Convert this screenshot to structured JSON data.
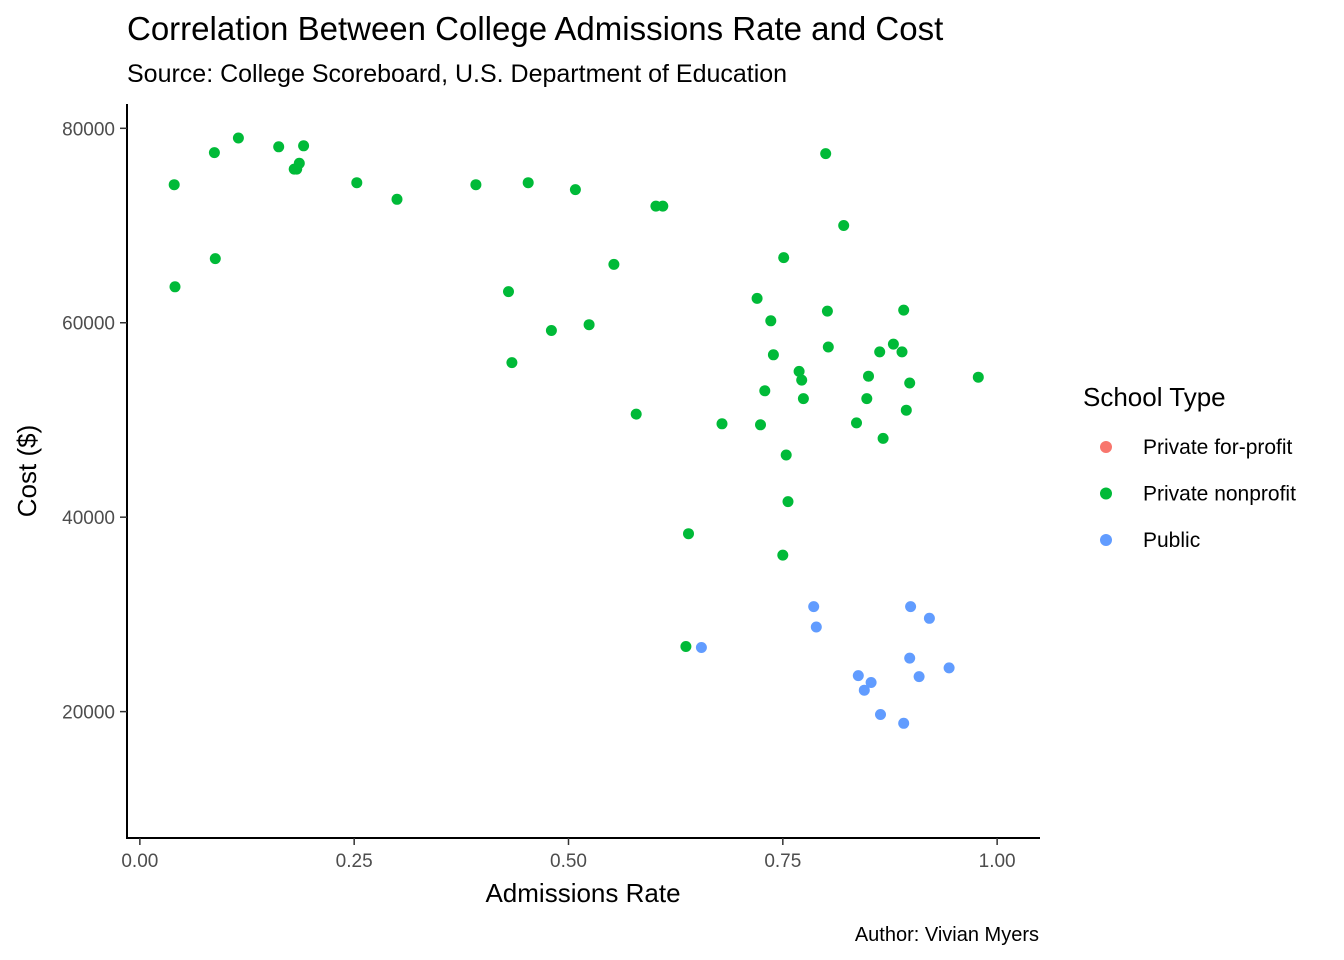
{
  "chart_data": {
    "type": "scatter",
    "title": "Correlation Between College Admissions Rate and Cost",
    "subtitle": "Source: College Scoreboard, U.S. Department of Education",
    "caption": "Author: Vivian Myers",
    "xlabel": "Admissions Rate",
    "ylabel": "Cost ($)",
    "xlim": [
      -0.015,
      1.05
    ],
    "ylim": [
      7000,
      82500
    ],
    "x_ticks": [
      0,
      0.25,
      0.5,
      0.75,
      1
    ],
    "x_tick_labels": [
      "0.00",
      "0.25",
      "0.50",
      "0.75",
      "1.00"
    ],
    "y_ticks": [
      20000,
      40000,
      60000,
      80000
    ],
    "y_tick_labels": [
      "20000",
      "40000",
      "60000",
      "80000"
    ],
    "grid": false,
    "legend": {
      "title": "School Type",
      "position": "right"
    },
    "series": [
      {
        "name": "Private for-profit",
        "color": "#F8766D",
        "points": []
      },
      {
        "name": "Private nonprofit",
        "color": "#00BA38",
        "points": [
          [
            0.04,
            74200
          ],
          [
            0.041,
            63700
          ],
          [
            0.087,
            77500
          ],
          [
            0.088,
            66600
          ],
          [
            0.115,
            79000
          ],
          [
            0.162,
            78100
          ],
          [
            0.18,
            75800
          ],
          [
            0.183,
            75800
          ],
          [
            0.186,
            76400
          ],
          [
            0.191,
            78200
          ],
          [
            0.253,
            74400
          ],
          [
            0.3,
            72700
          ],
          [
            0.392,
            74200
          ],
          [
            0.43,
            63200
          ],
          [
            0.434,
            55900
          ],
          [
            0.453,
            74400
          ],
          [
            0.48,
            59200
          ],
          [
            0.508,
            73700
          ],
          [
            0.524,
            59800
          ],
          [
            0.553,
            66000
          ],
          [
            0.579,
            50600
          ],
          [
            0.602,
            72000
          ],
          [
            0.61,
            72000
          ],
          [
            0.637,
            26700
          ],
          [
            0.64,
            38300
          ],
          [
            0.679,
            49600
          ],
          [
            0.72,
            62500
          ],
          [
            0.724,
            49500
          ],
          [
            0.729,
            53000
          ],
          [
            0.736,
            60200
          ],
          [
            0.739,
            56700
          ],
          [
            0.75,
            36100
          ],
          [
            0.751,
            66700
          ],
          [
            0.754,
            46400
          ],
          [
            0.756,
            41600
          ],
          [
            0.769,
            55000
          ],
          [
            0.772,
            54100
          ],
          [
            0.774,
            52200
          ],
          [
            0.8,
            77400
          ],
          [
            0.802,
            61200
          ],
          [
            0.803,
            57500
          ],
          [
            0.821,
            70000
          ],
          [
            0.836,
            49700
          ],
          [
            0.848,
            52200
          ],
          [
            0.85,
            54500
          ],
          [
            0.863,
            57000
          ],
          [
            0.867,
            48100
          ],
          [
            0.879,
            57800
          ],
          [
            0.889,
            57000
          ],
          [
            0.891,
            61300
          ],
          [
            0.894,
            51000
          ],
          [
            0.898,
            53800
          ],
          [
            0.978,
            54400
          ]
        ]
      },
      {
        "name": "Public",
        "color": "#619CFF",
        "points": [
          [
            0.655,
            26600
          ],
          [
            0.786,
            30800
          ],
          [
            0.789,
            28700
          ],
          [
            0.838,
            23700
          ],
          [
            0.845,
            22200
          ],
          [
            0.853,
            23000
          ],
          [
            0.864,
            19700
          ],
          [
            0.891,
            18800
          ],
          [
            0.898,
            25500
          ],
          [
            0.899,
            30800
          ],
          [
            0.909,
            23600
          ],
          [
            0.921,
            29600
          ],
          [
            0.944,
            24500
          ]
        ]
      }
    ]
  }
}
